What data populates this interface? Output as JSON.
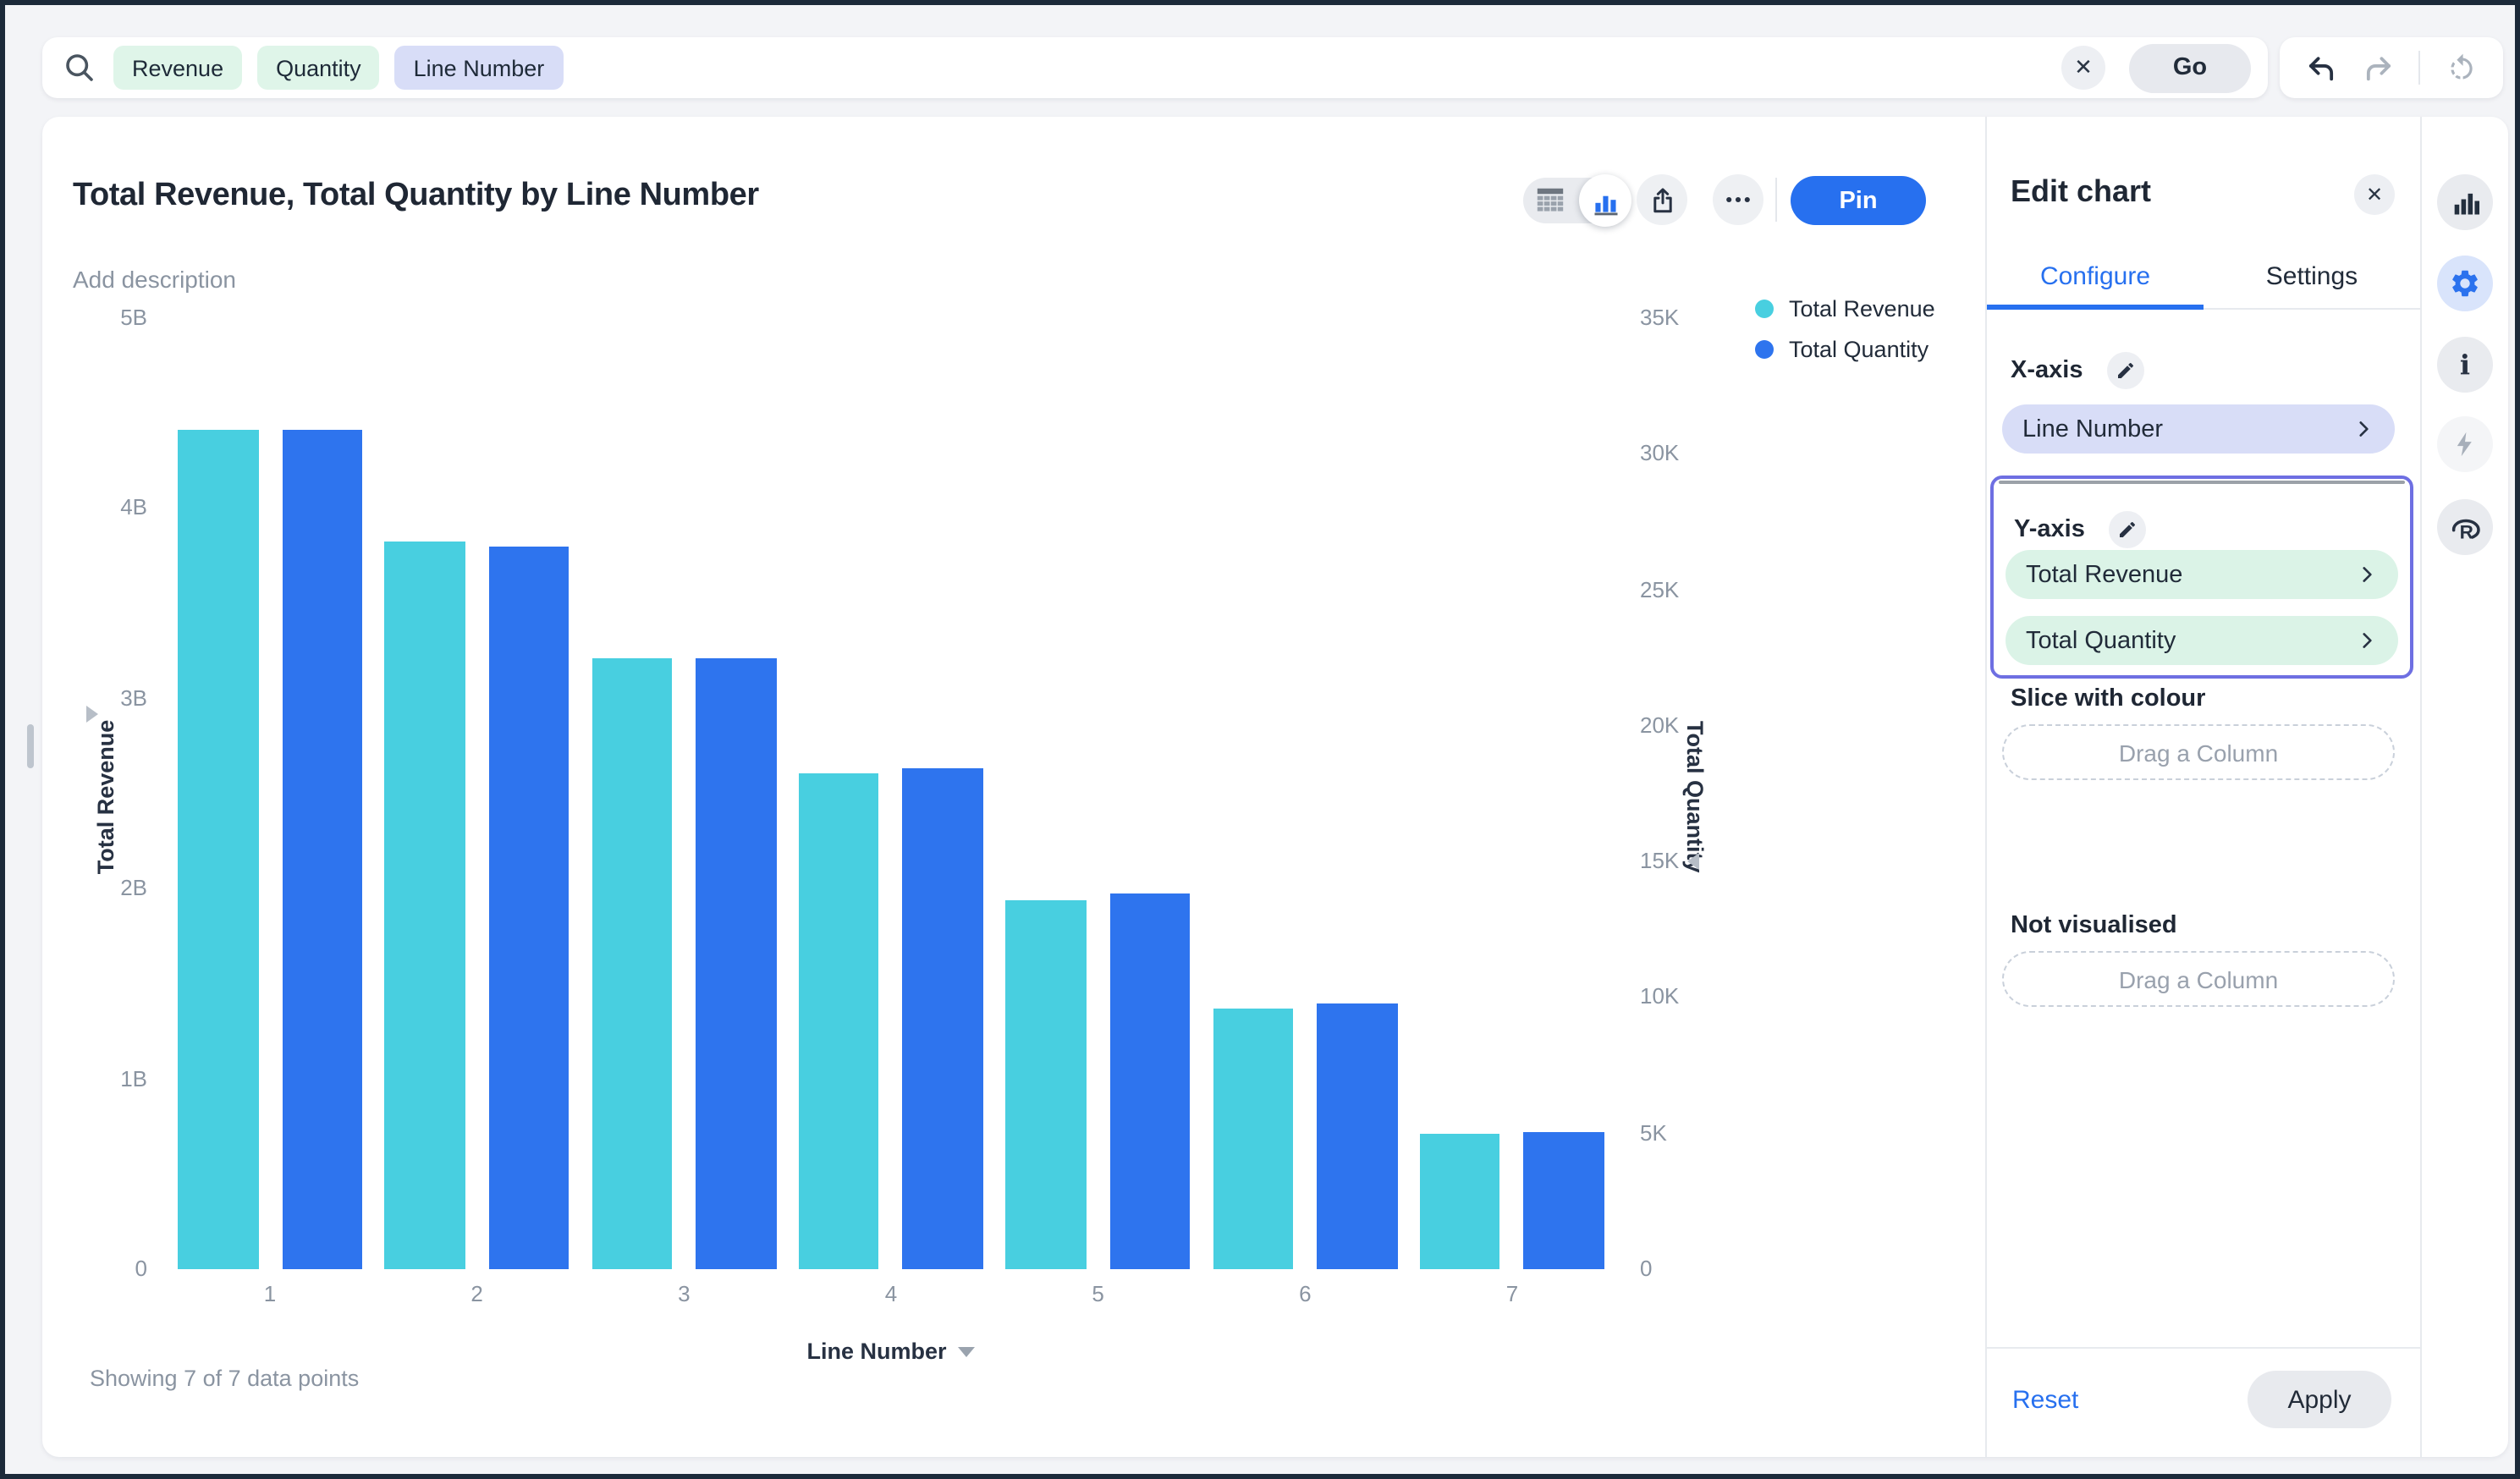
{
  "search": {
    "tokens": [
      {
        "label": "Revenue",
        "kind": "measure"
      },
      {
        "label": "Quantity",
        "kind": "measure"
      },
      {
        "label": "Line Number",
        "kind": "attribute"
      }
    ],
    "clear_label": "✕",
    "go_label": "Go"
  },
  "history": {
    "undo": "undo-arrow",
    "redo": "redo-arrow",
    "refresh": "refresh-circular-arrow"
  },
  "chart_header": {
    "title": "Total Revenue, Total Quantity by Line Number",
    "description_placeholder": "Add description",
    "pin_label": "Pin",
    "view_toggle": [
      "table-view",
      "chart-view"
    ],
    "active_view": "chart-view"
  },
  "chart_data": {
    "type": "bar",
    "title": "Total Revenue, Total Quantity by Line Number",
    "categories": [
      "1",
      "2",
      "3",
      "4",
      "5",
      "6",
      "7"
    ],
    "series": [
      {
        "name": "Total Revenue",
        "axis": "left",
        "color": "#48cfe0",
        "values": [
          4410000000,
          3830000000,
          3210000000,
          2610000000,
          1940000000,
          1370000000,
          710000000
        ]
      },
      {
        "name": "Total Quantity",
        "axis": "right",
        "color": "#2e74ee",
        "values": [
          30900,
          26600,
          22500,
          18450,
          13800,
          9760,
          5030
        ]
      }
    ],
    "xlabel": "Line Number",
    "y_axis_left": {
      "label": "Total Revenue",
      "ticks": [
        "0",
        "1B",
        "2B",
        "3B",
        "4B",
        "5B"
      ],
      "max": 5000000000,
      "min": 0
    },
    "y_axis_right": {
      "label": "Total Quantity",
      "ticks": [
        "0",
        "5K",
        "10K",
        "15K",
        "20K",
        "25K",
        "30K",
        "35K"
      ],
      "max": 35000,
      "min": 0
    },
    "legend_position": "top-right",
    "grid": false,
    "footer": "Showing 7 of 7 data points"
  },
  "edit_panel": {
    "title": "Edit chart",
    "close_label": "✕",
    "tabs": [
      {
        "label": "Configure",
        "active": true
      },
      {
        "label": "Settings",
        "active": false
      }
    ],
    "x_axis_label": "X-axis",
    "x_axis_chip": "Line Number",
    "y_axis_label": "Y-axis",
    "y_axis_chips": [
      "Total Revenue",
      "Total Quantity"
    ],
    "slice_label": "Slice with colour",
    "slice_placeholder": "Drag a Column",
    "not_visualised_label": "Not visualised",
    "not_visualised_placeholder": "Drag a Column",
    "reset_label": "Reset",
    "apply_label": "Apply"
  },
  "icon_rail": {
    "items": [
      {
        "name": "bar-chart-icon",
        "active": false
      },
      {
        "name": "gear-icon",
        "active": true
      },
      {
        "name": "info-icon",
        "active": false
      },
      {
        "name": "lightning-icon",
        "active": false
      },
      {
        "name": "r-logo-icon",
        "active": false
      }
    ]
  },
  "colors": {
    "accent_blue": "#2770ef",
    "bar_teal": "#48cfe0",
    "bar_blue": "#2e74ee",
    "token_green": "#dff5e9",
    "token_purple": "#d8ddf7",
    "chip_green": "#dbf3e7",
    "highlight_border": "#6e6fe2",
    "bg_gray": "#f3f4f7",
    "frame_dark": "#1c2a3a"
  }
}
